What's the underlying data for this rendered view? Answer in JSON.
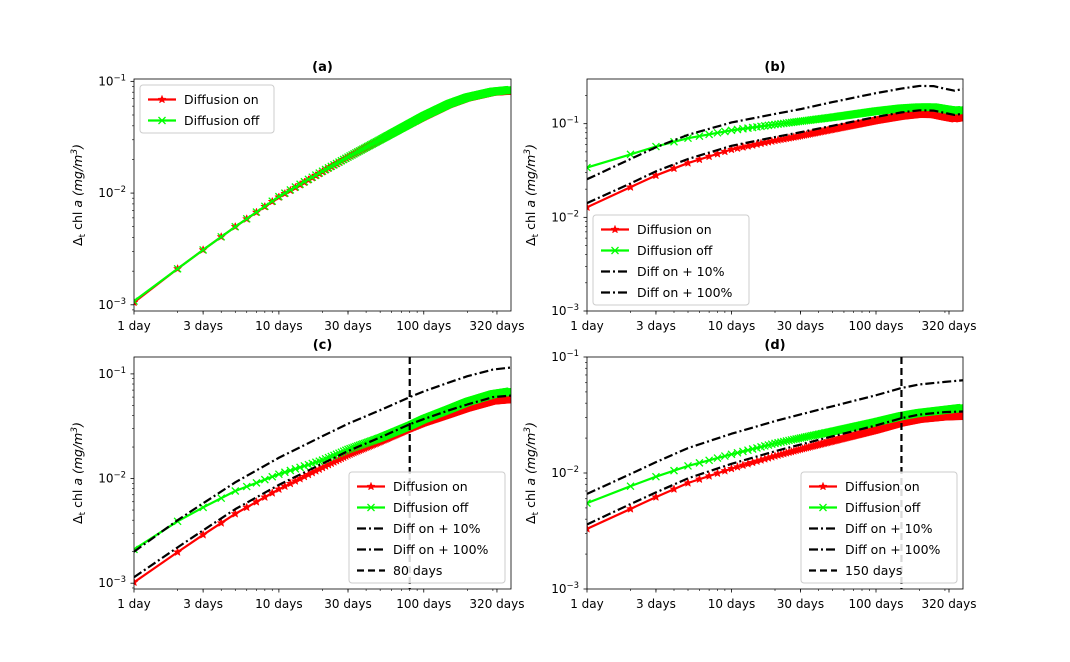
{
  "figure": {
    "ylabel_prefix": "Δ",
    "ylabel_sub": "t",
    "ylabel_mid": " chl ",
    "ylabel_a": "a",
    "ylabel_units": " (mg/m",
    "ylabel_exp": "3",
    "ylabel_close": ")"
  },
  "colors": {
    "on": "#ff0000",
    "off": "#00ff00",
    "black": "#000000"
  },
  "chart_data": [
    {
      "panel": "a",
      "type": "line",
      "title": "(a)",
      "xscale": "log",
      "yscale": "log",
      "xlim": [
        1,
        400
      ],
      "ylim": [
        0.00088,
        0.105
      ],
      "xticks": [
        1,
        3,
        10,
        30,
        100,
        320
      ],
      "xtick_labels": [
        "1 day",
        "3 days",
        "10 days",
        "30 days",
        "100 days",
        "320 days"
      ],
      "yticks": [
        0.001,
        0.01,
        0.1
      ],
      "ytick_labels": [
        "10",
        "10",
        "10"
      ],
      "ytick_exps": [
        "−3",
        "−2",
        "−1"
      ],
      "legend": {
        "loc": "upper-left",
        "entries": [
          "Diffusion on",
          "Diffusion off"
        ]
      },
      "series": [
        {
          "name": "Diffusion on",
          "color": "#ff0000",
          "style": "solid",
          "marker": "star",
          "x": [
            1,
            2,
            3,
            5,
            10,
            20,
            30,
            50,
            100,
            150,
            200,
            300,
            400
          ],
          "y": [
            0.00105,
            0.0021,
            0.0031,
            0.005,
            0.0092,
            0.0155,
            0.021,
            0.03,
            0.048,
            0.062,
            0.071,
            0.08,
            0.082
          ]
        },
        {
          "name": "Diffusion off",
          "color": "#00ff00",
          "style": "solid",
          "marker": "x",
          "x": [
            1,
            2,
            3,
            5,
            10,
            20,
            30,
            50,
            100,
            150,
            200,
            300,
            400
          ],
          "y": [
            0.00108,
            0.0021,
            0.0031,
            0.005,
            0.0093,
            0.0157,
            0.021,
            0.03,
            0.049,
            0.063,
            0.072,
            0.081,
            0.084
          ]
        }
      ]
    },
    {
      "panel": "b",
      "type": "line",
      "title": "(b)",
      "xscale": "log",
      "yscale": "log",
      "xlim": [
        1,
        400
      ],
      "ylim": [
        0.001,
        0.3
      ],
      "xticks": [
        1,
        3,
        10,
        30,
        100,
        320
      ],
      "xtick_labels": [
        "1 day",
        "3 days",
        "10 days",
        "30 days",
        "100 days",
        "320 days"
      ],
      "yticks": [
        0.001,
        0.01,
        0.1
      ],
      "ytick_labels": [
        "10",
        "10",
        "10"
      ],
      "ytick_exps": [
        "−3",
        "−2",
        "−1"
      ],
      "legend": {
        "loc": "lower-left",
        "entries": [
          "Diffusion on",
          "Diffusion off",
          "Diff on + 10%",
          "Diff on + 100%"
        ]
      },
      "series": [
        {
          "name": "Diffusion on",
          "color": "#ff0000",
          "style": "solid",
          "marker": "star",
          "x": [
            1,
            2,
            3,
            5,
            10,
            20,
            30,
            50,
            100,
            150,
            200,
            250,
            300,
            350,
            400
          ],
          "y": [
            0.0128,
            0.021,
            0.028,
            0.038,
            0.053,
            0.066,
            0.074,
            0.087,
            0.108,
            0.12,
            0.126,
            0.125,
            0.118,
            0.113,
            0.117
          ]
        },
        {
          "name": "Diffusion off",
          "color": "#00ff00",
          "style": "solid",
          "marker": "x",
          "x": [
            1,
            2,
            3,
            5,
            10,
            20,
            30,
            50,
            100,
            150,
            200,
            250,
            300,
            350,
            400
          ],
          "y": [
            0.034,
            0.047,
            0.057,
            0.07,
            0.085,
            0.098,
            0.106,
            0.117,
            0.136,
            0.146,
            0.15,
            0.15,
            0.143,
            0.138,
            0.14
          ]
        },
        {
          "name": "Diff on + 10%",
          "color": "#000000",
          "style": "dashdot",
          "marker": "none",
          "x": [
            1,
            2,
            3,
            5,
            10,
            20,
            30,
            50,
            100,
            150,
            200,
            250,
            300,
            350,
            400
          ],
          "y": [
            0.0142,
            0.023,
            0.031,
            0.042,
            0.058,
            0.072,
            0.081,
            0.095,
            0.118,
            0.132,
            0.139,
            0.138,
            0.13,
            0.124,
            0.128
          ]
        },
        {
          "name": "Diff on + 100%",
          "color": "#000000",
          "style": "dashdot",
          "marker": "none",
          "x": [
            1,
            2,
            3,
            5,
            10,
            20,
            30,
            50,
            100,
            150,
            200,
            250,
            300,
            350,
            400
          ],
          "y": [
            0.0255,
            0.042,
            0.056,
            0.076,
            0.103,
            0.127,
            0.143,
            0.17,
            0.212,
            0.237,
            0.253,
            0.252,
            0.236,
            0.225,
            0.235
          ]
        }
      ]
    },
    {
      "panel": "c",
      "type": "line",
      "title": "(c)",
      "xscale": "log",
      "yscale": "log",
      "xlim": [
        1,
        400
      ],
      "ylim": [
        0.00088,
        0.145
      ],
      "xticks": [
        1,
        3,
        10,
        30,
        100,
        320
      ],
      "xtick_labels": [
        "1 day",
        "3 days",
        "10 days",
        "30 days",
        "100 days",
        "320 days"
      ],
      "yticks": [
        0.001,
        0.01,
        0.1
      ],
      "ytick_labels": [
        "10",
        "10",
        "10"
      ],
      "ytick_exps": [
        "−3",
        "−2",
        "−1"
      ],
      "vline": {
        "x": 80,
        "label": "80 days"
      },
      "legend": {
        "loc": "lower-right",
        "entries": [
          "Diffusion on",
          "Diffusion off",
          "Diff on + 10%",
          "Diff on + 100%",
          "80 days"
        ]
      },
      "series": [
        {
          "name": "Diffusion on",
          "color": "#ff0000",
          "style": "solid",
          "marker": "star",
          "x": [
            1,
            2,
            3,
            5,
            10,
            20,
            30,
            50,
            80,
            100,
            150,
            200,
            300,
            400
          ],
          "y": [
            0.00102,
            0.00198,
            0.0029,
            0.0046,
            0.0079,
            0.0127,
            0.0167,
            0.0225,
            0.03,
            0.034,
            0.041,
            0.047,
            0.055,
            0.057
          ]
        },
        {
          "name": "Diffusion off",
          "color": "#00ff00",
          "style": "solid",
          "marker": "x",
          "x": [
            1,
            2,
            3,
            5,
            10,
            20,
            30,
            50,
            80,
            100,
            150,
            200,
            300,
            400
          ],
          "y": [
            0.0021,
            0.0039,
            0.0053,
            0.0076,
            0.011,
            0.015,
            0.019,
            0.0245,
            0.032,
            0.037,
            0.046,
            0.054,
            0.064,
            0.068
          ]
        },
        {
          "name": "Diff on + 10%",
          "color": "#000000",
          "style": "dashdot",
          "marker": "none",
          "x": [
            1,
            2,
            3,
            5,
            10,
            20,
            30,
            50,
            80,
            100,
            150,
            200,
            300,
            400
          ],
          "y": [
            0.00114,
            0.0022,
            0.0032,
            0.0051,
            0.0087,
            0.0139,
            0.0183,
            0.0247,
            0.033,
            0.037,
            0.045,
            0.051,
            0.06,
            0.062
          ]
        },
        {
          "name": "Diff on + 100%",
          "color": "#000000",
          "style": "dashdot",
          "marker": "none",
          "x": [
            1,
            2,
            3,
            5,
            10,
            20,
            30,
            50,
            80,
            100,
            150,
            200,
            300,
            400
          ],
          "y": [
            0.002,
            0.004,
            0.0058,
            0.0092,
            0.0158,
            0.0254,
            0.0334,
            0.045,
            0.06,
            0.068,
            0.083,
            0.095,
            0.11,
            0.115
          ]
        }
      ]
    },
    {
      "panel": "d",
      "type": "line",
      "title": "(d)",
      "xscale": "log",
      "yscale": "log",
      "xlim": [
        1,
        400
      ],
      "ylim": [
        0.001,
        0.1
      ],
      "xticks": [
        1,
        3,
        10,
        30,
        100,
        320
      ],
      "xtick_labels": [
        "1 day",
        "3 days",
        "10 days",
        "30 days",
        "100 days",
        "320 days"
      ],
      "yticks": [
        0.001,
        0.01,
        0.1
      ],
      "ytick_labels": [
        "10",
        "10",
        "10"
      ],
      "ytick_exps": [
        "−3",
        "−2",
        "−1"
      ],
      "vline": {
        "x": 150,
        "label": "150 days"
      },
      "legend": {
        "loc": "lower-right",
        "entries": [
          "Diffusion on",
          "Diffusion off",
          "Diff on + 10%",
          "Diff on + 100%",
          "150 days"
        ]
      },
      "series": [
        {
          "name": "Diffusion on",
          "color": "#ff0000",
          "style": "solid",
          "marker": "star",
          "x": [
            1,
            2,
            3,
            5,
            10,
            20,
            30,
            50,
            100,
            150,
            200,
            300,
            400
          ],
          "y": [
            0.0033,
            0.0049,
            0.0062,
            0.0082,
            0.0109,
            0.014,
            0.016,
            0.0188,
            0.0234,
            0.027,
            0.029,
            0.0305,
            0.0308
          ]
        },
        {
          "name": "Diffusion off",
          "color": "#00ff00",
          "style": "solid",
          "marker": "x",
          "x": [
            1,
            2,
            3,
            5,
            10,
            20,
            30,
            50,
            100,
            150,
            200,
            300,
            400
          ],
          "y": [
            0.0055,
            0.0077,
            0.0093,
            0.0115,
            0.0145,
            0.018,
            0.02,
            0.0228,
            0.0275,
            0.031,
            0.033,
            0.035,
            0.0365
          ]
        },
        {
          "name": "Diff on + 10%",
          "color": "#000000",
          "style": "dashdot",
          "marker": "none",
          "x": [
            1,
            2,
            3,
            5,
            10,
            20,
            30,
            50,
            100,
            150,
            200,
            300,
            400
          ],
          "y": [
            0.0036,
            0.0054,
            0.0068,
            0.009,
            0.012,
            0.0154,
            0.0176,
            0.0207,
            0.0257,
            0.0297,
            0.0319,
            0.0335,
            0.0339
          ]
        },
        {
          "name": "Diff on + 100%",
          "color": "#000000",
          "style": "dashdot",
          "marker": "none",
          "x": [
            1,
            2,
            3,
            5,
            10,
            20,
            30,
            50,
            100,
            150,
            200,
            300,
            400
          ],
          "y": [
            0.0066,
            0.0098,
            0.0124,
            0.0164,
            0.0218,
            0.028,
            0.032,
            0.0376,
            0.0468,
            0.054,
            0.058,
            0.061,
            0.063
          ]
        }
      ]
    }
  ]
}
